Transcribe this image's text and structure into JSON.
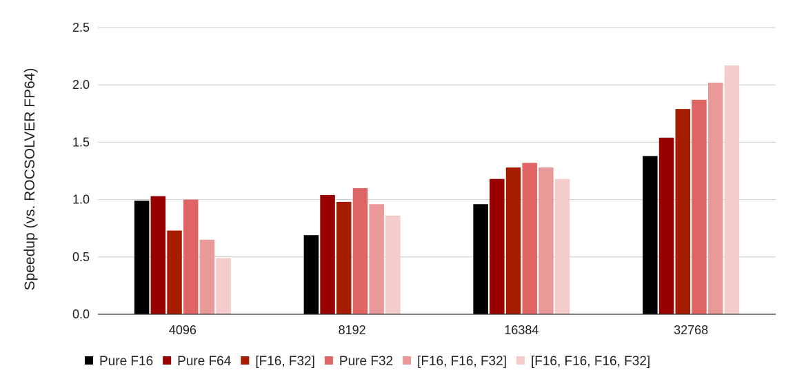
{
  "chart_data": {
    "type": "bar",
    "title": "",
    "xlabel": "",
    "ylabel": "Speedup (vs. ROCSOLVER FP64)",
    "ylim": [
      0,
      2.5
    ],
    "yticks": [
      "0.0",
      "0.5",
      "1.0",
      "1.5",
      "2.0",
      "2.5"
    ],
    "grid": true,
    "legend_position": "bottom",
    "categories": [
      "4096",
      "8192",
      "16384",
      "32768"
    ],
    "series": [
      {
        "name": "Pure F16",
        "color": "#000000",
        "values": [
          0.99,
          0.69,
          0.96,
          1.38
        ]
      },
      {
        "name": "Pure F64",
        "color": "#990000",
        "values": [
          1.03,
          1.04,
          1.18,
          1.54
        ]
      },
      {
        "name": "[F16, F32]",
        "color": "#a61c00",
        "values": [
          0.73,
          0.98,
          1.28,
          1.79
        ]
      },
      {
        "name": "Pure F32",
        "color": "#e06666",
        "values": [
          1.0,
          1.1,
          1.32,
          1.87
        ]
      },
      {
        "name": "[F16, F16, F32]",
        "color": "#ea9999",
        "values": [
          0.65,
          0.96,
          1.28,
          2.02
        ]
      },
      {
        "name": "[F16, F16, F16, F32]",
        "color": "#f4cccc",
        "values": [
          0.49,
          0.86,
          1.18,
          2.17
        ]
      }
    ]
  }
}
